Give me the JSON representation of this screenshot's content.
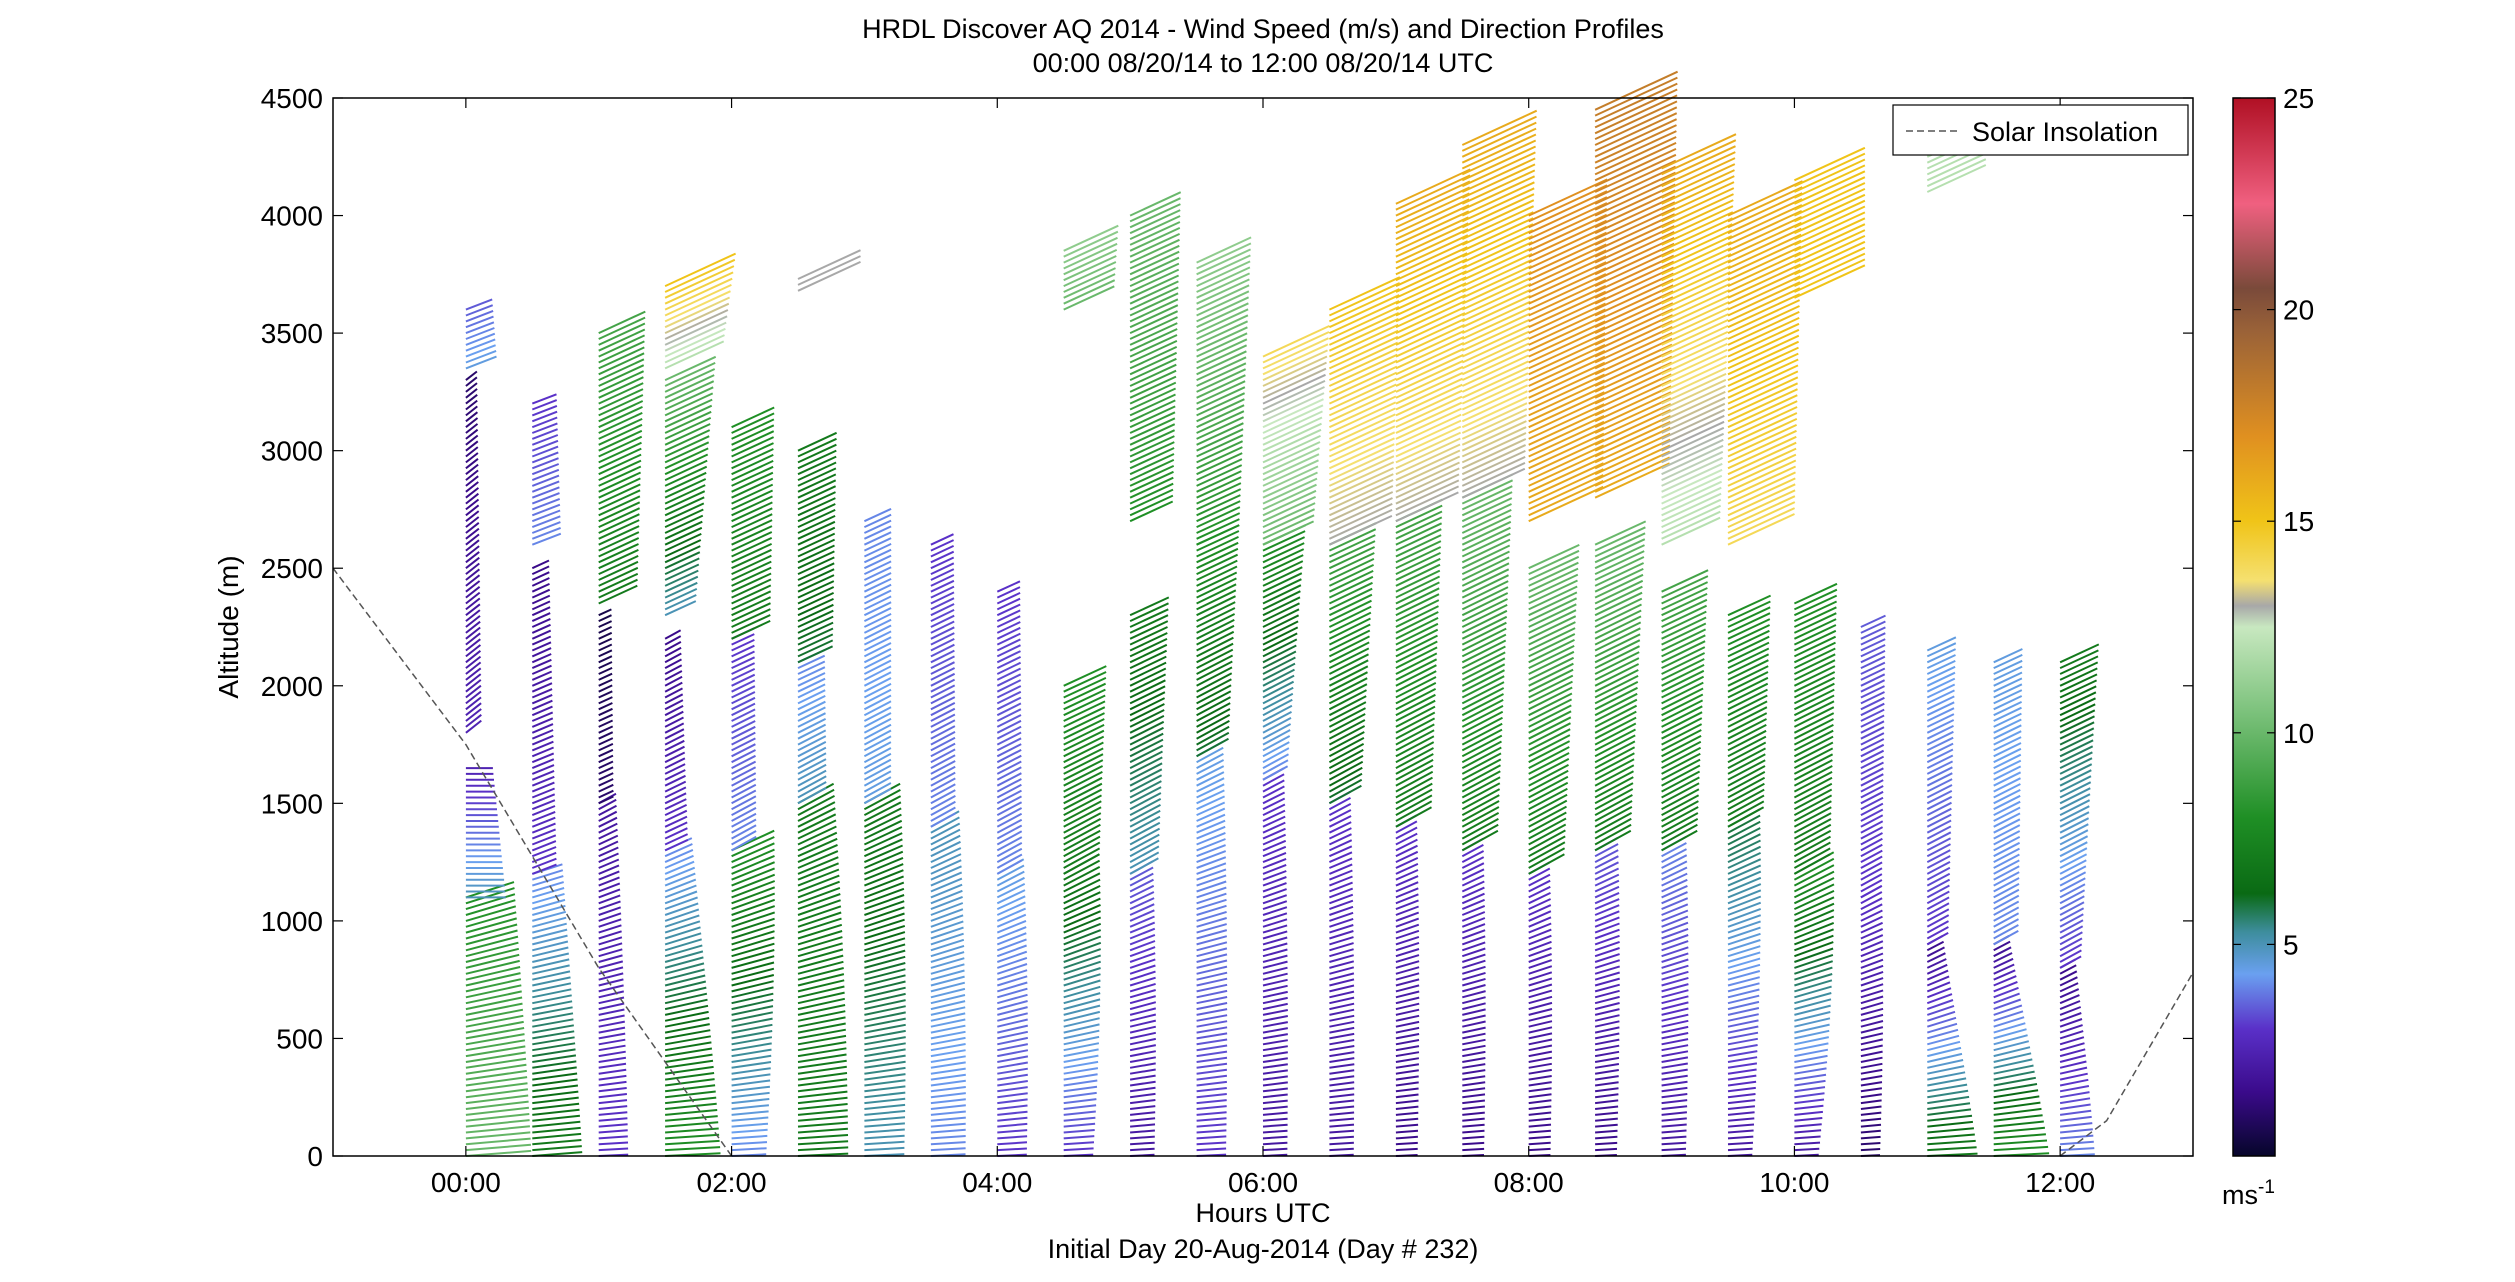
{
  "chart_data": {
    "type": "scatter",
    "title": "HRDL Discover AQ 2014 - Wind Speed (m/s) and Direction Profiles",
    "subtitle": "00:00 08/20/14 to 12:00 08/20/14  UTC",
    "xlabel": "Hours UTC",
    "xlabel2": "Initial Day 20-Aug-2014 (Day # 232)",
    "ylabel": "Altitude (m)",
    "xlim": [
      -1.0,
      13.0
    ],
    "ylim": [
      0,
      4500
    ],
    "x_ticks": [
      {
        "value": 0,
        "label": "00:00"
      },
      {
        "value": 2,
        "label": "02:00"
      },
      {
        "value": 4,
        "label": "04:00"
      },
      {
        "value": 6,
        "label": "06:00"
      },
      {
        "value": 8,
        "label": "08:00"
      },
      {
        "value": 10,
        "label": "10:00"
      },
      {
        "value": 12,
        "label": "12:00"
      }
    ],
    "y_ticks": [
      {
        "value": 0,
        "label": "0"
      },
      {
        "value": 500,
        "label": "500"
      },
      {
        "value": 1000,
        "label": "1000"
      },
      {
        "value": 1500,
        "label": "1500"
      },
      {
        "value": 2000,
        "label": "2000"
      },
      {
        "value": 2500,
        "label": "2500"
      },
      {
        "value": 3000,
        "label": "3000"
      },
      {
        "value": 3500,
        "label": "3500"
      },
      {
        "value": 4000,
        "label": "4000"
      },
      {
        "value": 4500,
        "label": "4500"
      }
    ],
    "legend": {
      "label": "Solar Insolation",
      "placement": "top-right",
      "style": "dashed",
      "color": "#555555"
    },
    "colorbar": {
      "label": "ms",
      "label_superscript": "-1",
      "range": [
        0,
        25
      ],
      "ticks": [
        {
          "value": 5,
          "label": "5"
        },
        {
          "value": 10,
          "label": "10"
        },
        {
          "value": 15,
          "label": "15"
        },
        {
          "value": 20,
          "label": "20"
        },
        {
          "value": 25,
          "label": "25"
        }
      ],
      "stops": [
        {
          "v": 0,
          "c": "#06062a"
        },
        {
          "v": 1.5,
          "c": "#3a0a8a"
        },
        {
          "v": 3,
          "c": "#5a30c8"
        },
        {
          "v": 4.3,
          "c": "#6aa0f0"
        },
        {
          "v": 5.3,
          "c": "#3d8d9c"
        },
        {
          "v": 6.2,
          "c": "#0a6a14"
        },
        {
          "v": 8,
          "c": "#1f8f25"
        },
        {
          "v": 10.5,
          "c": "#7cc27c"
        },
        {
          "v": 12.5,
          "c": "#c8e8c0"
        },
        {
          "v": 13,
          "c": "#a8a8a8"
        },
        {
          "v": 13.6,
          "c": "#f5e070"
        },
        {
          "v": 15,
          "c": "#f0c418"
        },
        {
          "v": 17,
          "c": "#e09020"
        },
        {
          "v": 19.5,
          "c": "#9a6238"
        },
        {
          "v": 20.5,
          "c": "#7a4a3a"
        },
        {
          "v": 22.5,
          "c": "#f06080"
        },
        {
          "v": 25,
          "c": "#b01024"
        }
      ]
    },
    "solar_insolation": [
      {
        "x": -1.0,
        "y": 2500
      },
      {
        "x": 0.0,
        "y": 1750
      },
      {
        "x": 1.0,
        "y": 800
      },
      {
        "x": 2.0,
        "y": 0
      },
      {
        "x": 12.0,
        "y": 0
      },
      {
        "x": 12.35,
        "y": 150
      },
      {
        "x": 13.0,
        "y": 780
      }
    ],
    "profiles": [
      {
        "t": 0.0,
        "segments": [
          {
            "z0": 0,
            "z1": 1100,
            "s0": 10,
            "s1": 8,
            "b0": 8,
            "b1": 30
          },
          {
            "z0": 1100,
            "z1": 1650,
            "s0": 5,
            "s1": 2.5,
            "b0": 0,
            "b1": 0
          },
          {
            "z0": 1800,
            "z1": 3300,
            "s0": 2.5,
            "s1": 1,
            "b0": 55,
            "b1": 55
          },
          {
            "z0": 3350,
            "z1": 3600,
            "s0": 4.5,
            "s1": 3.5,
            "b0": 35,
            "b1": 35
          }
        ]
      },
      {
        "t": 0.5,
        "segments": [
          {
            "z0": 0,
            "z1": 1200,
            "s0": 7,
            "s1": 4,
            "b0": 8,
            "b1": 30
          },
          {
            "z0": 1200,
            "z1": 2500,
            "s0": 3,
            "s1": 1.5,
            "b0": 35,
            "b1": 40
          },
          {
            "z0": 2600,
            "z1": 3200,
            "s0": 4,
            "s1": 3,
            "b0": 35,
            "b1": 35
          }
        ]
      },
      {
        "t": 1.0,
        "segments": [
          {
            "z0": 0,
            "z1": 1500,
            "s0": 3,
            "s1": 2,
            "b0": 5,
            "b1": 45
          },
          {
            "z0": 1500,
            "z1": 2300,
            "s0": 1,
            "s1": 0.5,
            "b0": 40,
            "b1": 40
          },
          {
            "z0": 2350,
            "z1": 3500,
            "s0": 7,
            "s1": 9,
            "b0": 40,
            "b1": 40
          }
        ]
      },
      {
        "t": 1.5,
        "segments": [
          {
            "z0": 0,
            "z1": 1300,
            "s0": 8,
            "s1": 4,
            "b0": 5,
            "b1": 40
          },
          {
            "z0": 1300,
            "z1": 2200,
            "s0": 3,
            "s1": 1.5,
            "b0": 40,
            "b1": 45
          },
          {
            "z0": 2300,
            "z1": 3300,
            "s0": 5,
            "s1": 10,
            "b0": 40,
            "b1": 40
          },
          {
            "z0": 3350,
            "z1": 3700,
            "s0": 12,
            "s1": 15,
            "b0": 40,
            "b1": 40
          }
        ]
      },
      {
        "t": 2.0,
        "segments": [
          {
            "z0": 0,
            "z1": 1300,
            "s0": 4,
            "s1": 8,
            "b0": 5,
            "b1": 40
          },
          {
            "z0": 1300,
            "z1": 2200,
            "s0": 4,
            "s1": 3,
            "b0": 45,
            "b1": 40
          },
          {
            "z0": 2200,
            "z1": 3100,
            "s0": 7,
            "s1": 8,
            "b0": 40,
            "b1": 40
          }
        ]
      },
      {
        "t": 2.5,
        "segments": [
          {
            "z0": 0,
            "z1": 1500,
            "s0": 7,
            "s1": 7,
            "b0": 5,
            "b1": 45
          },
          {
            "z0": 1500,
            "z1": 2100,
            "s0": 5,
            "s1": 4,
            "b0": 45,
            "b1": 40
          },
          {
            "z0": 2100,
            "z1": 3000,
            "s0": 6,
            "s1": 7,
            "b0": 40,
            "b1": 40
          },
          {
            "z0": 3680,
            "z1": 3730,
            "s0": 13,
            "s1": 13,
            "b0": 40,
            "b1": 40
          }
        ]
      },
      {
        "t": 3.0,
        "segments": [
          {
            "z0": 0,
            "z1": 1500,
            "s0": 5,
            "s1": 7,
            "b0": 5,
            "b1": 45
          },
          {
            "z0": 1500,
            "z1": 2700,
            "s0": 4.5,
            "s1": 4,
            "b0": 45,
            "b1": 40
          }
        ]
      },
      {
        "t": 3.5,
        "segments": [
          {
            "z0": 0,
            "z1": 1400,
            "s0": 4,
            "s1": 5,
            "b0": 5,
            "b1": 45
          },
          {
            "z0": 1400,
            "z1": 2600,
            "s0": 4,
            "s1": 3,
            "b0": 45,
            "b1": 40
          }
        ]
      },
      {
        "t": 4.0,
        "segments": [
          {
            "z0": 0,
            "z1": 1200,
            "s0": 3,
            "s1": 4.5,
            "b0": 5,
            "b1": 45
          },
          {
            "z0": 1200,
            "z1": 2400,
            "s0": 4,
            "s1": 3,
            "b0": 45,
            "b1": 40
          }
        ]
      },
      {
        "t": 4.5,
        "segments": [
          {
            "z0": 0,
            "z1": 1200,
            "s0": 3,
            "s1": 7,
            "b0": 5,
            "b1": 45
          },
          {
            "z0": 1200,
            "z1": 2000,
            "s0": 7,
            "s1": 8,
            "b0": 45,
            "b1": 40
          },
          {
            "z0": 3600,
            "z1": 3850,
            "s0": 10,
            "s1": 11,
            "b0": 40,
            "b1": 40
          }
        ]
      },
      {
        "t": 5.0,
        "segments": [
          {
            "z0": 0,
            "z1": 1200,
            "s0": 2,
            "s1": 3.5,
            "b0": 5,
            "b1": 45
          },
          {
            "z0": 1200,
            "z1": 2300,
            "s0": 5,
            "s1": 7,
            "b0": 45,
            "b1": 40
          },
          {
            "z0": 2700,
            "z1": 4000,
            "s0": 8,
            "s1": 10,
            "b0": 40,
            "b1": 40
          }
        ]
      },
      {
        "t": 5.5,
        "segments": [
          {
            "z0": 0,
            "z1": 1700,
            "s0": 3,
            "s1": 4.5,
            "b0": 5,
            "b1": 45
          },
          {
            "z0": 1700,
            "z1": 2600,
            "s0": 6,
            "s1": 8,
            "b0": 45,
            "b1": 40
          },
          {
            "z0": 2600,
            "z1": 3800,
            "s0": 8,
            "s1": 11,
            "b0": 40,
            "b1": 40
          }
        ]
      },
      {
        "t": 6.0,
        "segments": [
          {
            "z0": 0,
            "z1": 1600,
            "s0": 2,
            "s1": 3,
            "b0": 5,
            "b1": 45
          },
          {
            "z0": 1600,
            "z1": 2600,
            "s0": 4,
            "s1": 8,
            "b0": 45,
            "b1": 40
          },
          {
            "z0": 2600,
            "z1": 3400,
            "s0": 10,
            "s1": 14,
            "b0": 40,
            "b1": 40
          }
        ]
      },
      {
        "t": 6.5,
        "segments": [
          {
            "z0": 0,
            "z1": 1500,
            "s0": 2,
            "s1": 3,
            "b0": 5,
            "b1": 45
          },
          {
            "z0": 1500,
            "z1": 2600,
            "s0": 6,
            "s1": 9,
            "b0": 45,
            "b1": 40
          },
          {
            "z0": 2600,
            "z1": 3600,
            "s0": 13,
            "s1": 15,
            "b0": 40,
            "b1": 40
          }
        ]
      },
      {
        "t": 7.0,
        "segments": [
          {
            "z0": 0,
            "z1": 1400,
            "s0": 1.5,
            "s1": 3,
            "b0": 5,
            "b1": 45
          },
          {
            "z0": 1400,
            "z1": 2700,
            "s0": 7,
            "s1": 9,
            "b0": 45,
            "b1": 40
          },
          {
            "z0": 2700,
            "z1": 4050,
            "s0": 13,
            "s1": 16,
            "b0": 40,
            "b1": 40
          }
        ]
      },
      {
        "t": 7.5,
        "segments": [
          {
            "z0": 0,
            "z1": 1300,
            "s0": 1.5,
            "s1": 3,
            "b0": 5,
            "b1": 45
          },
          {
            "z0": 1300,
            "z1": 2800,
            "s0": 7,
            "s1": 10,
            "b0": 45,
            "b1": 40
          },
          {
            "z0": 2800,
            "z1": 4300,
            "s0": 13,
            "s1": 16,
            "b0": 40,
            "b1": 40
          }
        ]
      },
      {
        "t": 8.0,
        "segments": [
          {
            "z0": 0,
            "z1": 1200,
            "s0": 1.5,
            "s1": 3,
            "b0": 5,
            "b1": 45
          },
          {
            "z0": 1200,
            "z1": 2500,
            "s0": 7,
            "s1": 10,
            "b0": 45,
            "b1": 40
          },
          {
            "z0": 2700,
            "z1": 4000,
            "s0": 16,
            "s1": 17,
            "b0": 40,
            "b1": 40
          }
        ]
      },
      {
        "t": 8.5,
        "segments": [
          {
            "z0": 0,
            "z1": 1300,
            "s0": 1.5,
            "s1": 3.5,
            "b0": 5,
            "b1": 45
          },
          {
            "z0": 1300,
            "z1": 2600,
            "s0": 7,
            "s1": 10,
            "b0": 45,
            "b1": 40
          },
          {
            "z0": 2800,
            "z1": 4450,
            "s0": 16,
            "s1": 18,
            "b0": 40,
            "b1": 40
          }
        ]
      },
      {
        "t": 9.0,
        "segments": [
          {
            "z0": 0,
            "z1": 1300,
            "s0": 2,
            "s1": 4,
            "b0": 5,
            "b1": 45
          },
          {
            "z0": 1300,
            "z1": 2400,
            "s0": 7,
            "s1": 9,
            "b0": 45,
            "b1": 40
          },
          {
            "z0": 2600,
            "z1": 4200,
            "s0": 12,
            "s1": 16,
            "b0": 40,
            "b1": 40
          }
        ]
      },
      {
        "t": 9.5,
        "segments": [
          {
            "z0": 0,
            "z1": 1400,
            "s0": 2,
            "s1": 6,
            "b0": 5,
            "b1": 45
          },
          {
            "z0": 1400,
            "z1": 2300,
            "s0": 7,
            "s1": 8,
            "b0": 45,
            "b1": 40
          },
          {
            "z0": 2600,
            "z1": 4000,
            "s0": 14,
            "s1": 16,
            "b0": 40,
            "b1": 40
          }
        ]
      },
      {
        "t": 10.0,
        "segments": [
          {
            "z0": 0,
            "z1": 1200,
            "s0": 2,
            "s1": 8,
            "b0": 5,
            "b1": 45
          },
          {
            "z0": 1200,
            "z1": 2350,
            "s0": 7,
            "s1": 8,
            "b0": 45,
            "b1": 40
          },
          {
            "z0": 3650,
            "z1": 4150,
            "s0": 15,
            "s1": 15,
            "b0": 40,
            "b1": 40
          }
        ]
      },
      {
        "t": 10.5,
        "segments": [
          {
            "z0": 0,
            "z1": 1100,
            "s0": 1,
            "s1": 3,
            "b0": 5,
            "b1": 45
          },
          {
            "z0": 1100,
            "z1": 2250,
            "s0": 3,
            "s1": 3.5,
            "b0": 45,
            "b1": 40
          }
        ]
      },
      {
        "t": 11.0,
        "segments": [
          {
            "z0": 0,
            "z1": 900,
            "s0": 7,
            "s1": 1.5,
            "b0": 5,
            "b1": 45
          },
          {
            "z0": 900,
            "z1": 2150,
            "s0": 3,
            "s1": 4.5,
            "b0": 45,
            "b1": 40
          },
          {
            "z0": 4100,
            "z1": 4250,
            "s0": 12,
            "s1": 12,
            "b0": 40,
            "b1": 40
          }
        ]
      },
      {
        "t": 11.5,
        "segments": [
          {
            "z0": 0,
            "z1": 900,
            "s0": 8,
            "s1": 1.5,
            "b0": 5,
            "b1": 45
          },
          {
            "z0": 900,
            "z1": 2100,
            "s0": 4,
            "s1": 4.5,
            "b0": 45,
            "b1": 40
          }
        ]
      },
      {
        "t": 12.0,
        "segments": [
          {
            "z0": 0,
            "z1": 800,
            "s0": 4,
            "s1": 1.5,
            "b0": 5,
            "b1": 45
          },
          {
            "z0": 800,
            "z1": 2100,
            "s0": 3,
            "s1": 7,
            "b0": 45,
            "b1": 40
          }
        ]
      }
    ]
  }
}
